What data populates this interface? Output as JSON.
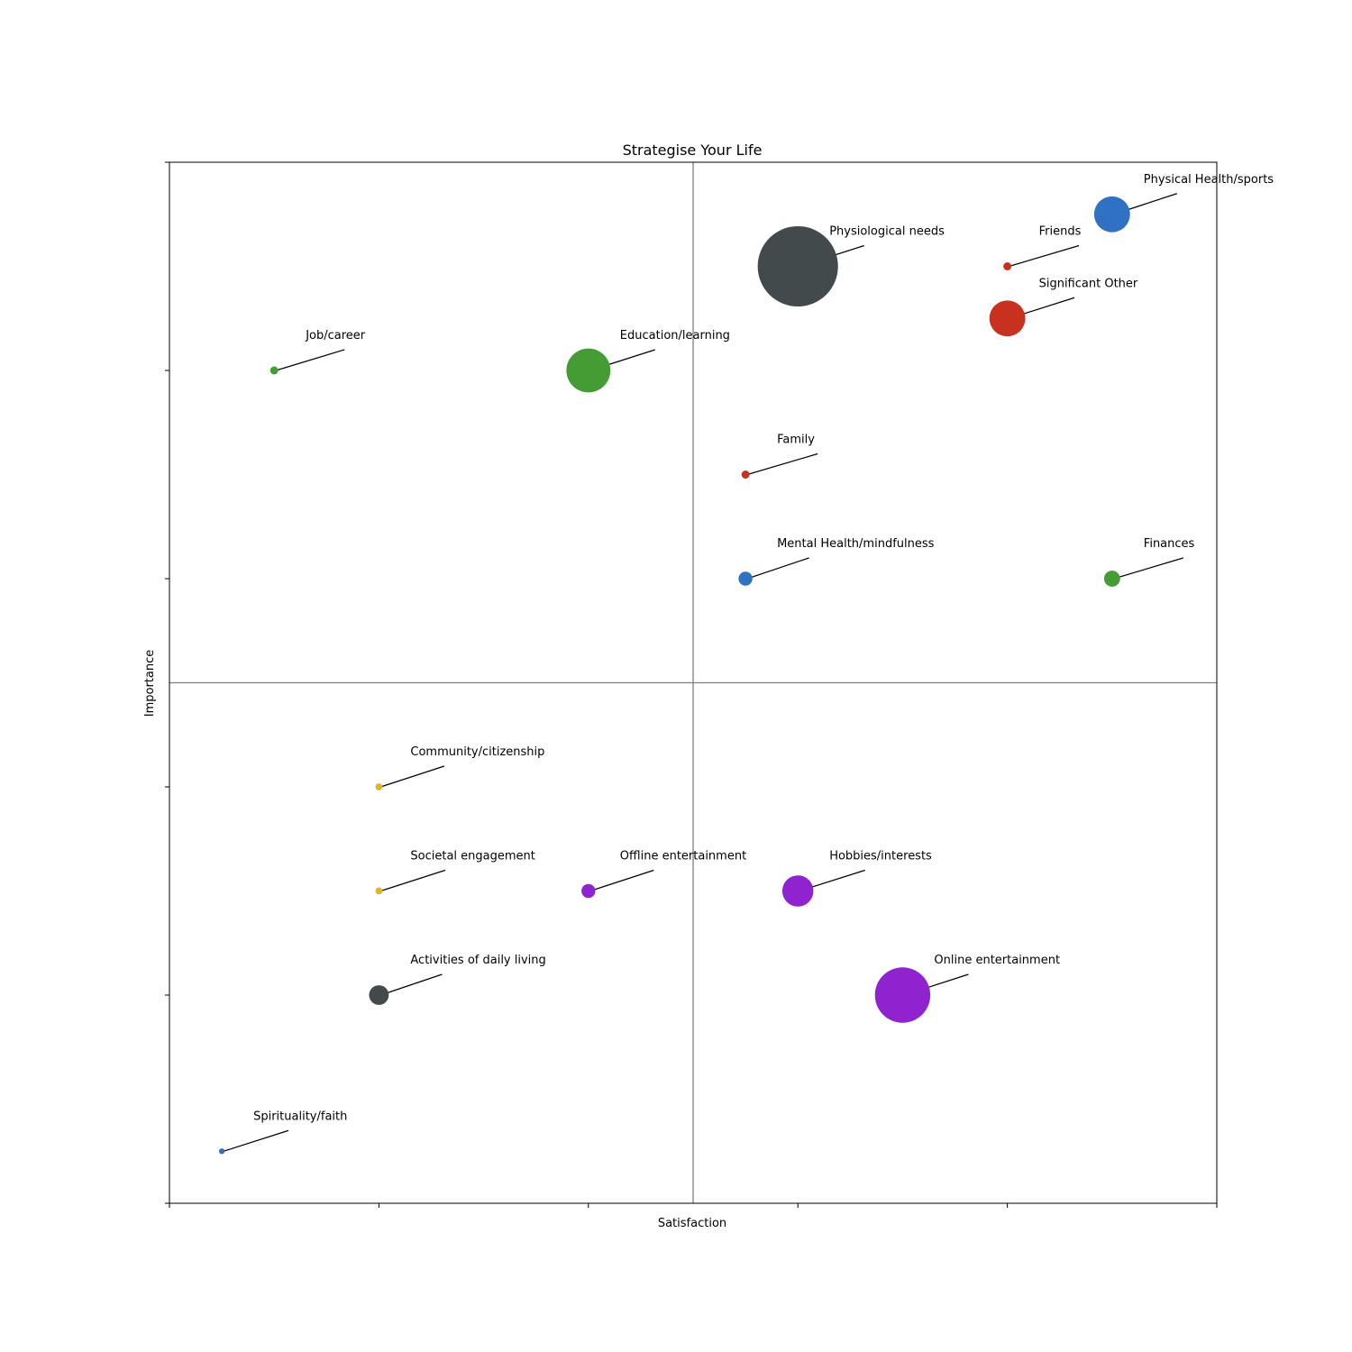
{
  "chart_data": {
    "type": "scatter",
    "title": "Strategise Your Life",
    "xlabel": "Satisfaction",
    "ylabel": "Importance",
    "xlim": [
      0,
      10
    ],
    "ylim": [
      0,
      10
    ],
    "quadrant_lines": {
      "x": 5,
      "y": 5
    },
    "grid": false,
    "tick_labels_visible": false,
    "points": [
      {
        "label": "Physical Health/sports",
        "x": 9.0,
        "y": 9.5,
        "size": 40,
        "color": "#2f72c4"
      },
      {
        "label": "Physiological needs",
        "x": 6.0,
        "y": 9.0,
        "size": 200,
        "color": "#434a4c"
      },
      {
        "label": "Friends",
        "x": 8.0,
        "y": 9.0,
        "size": 2,
        "color": "#c8311d"
      },
      {
        "label": "Significant Other",
        "x": 8.0,
        "y": 8.5,
        "size": 40,
        "color": "#c8311d"
      },
      {
        "label": "Job/career",
        "x": 1.0,
        "y": 8.0,
        "size": 2,
        "color": "#459c34"
      },
      {
        "label": "Education/learning",
        "x": 4.0,
        "y": 8.0,
        "size": 60,
        "color": "#459c34"
      },
      {
        "label": "Family",
        "x": 5.5,
        "y": 7.0,
        "size": 2,
        "color": "#c8311d"
      },
      {
        "label": "Mental Health/mindfulness",
        "x": 5.5,
        "y": 6.0,
        "size": 6,
        "color": "#2f72c4"
      },
      {
        "label": "Finances",
        "x": 9.0,
        "y": 6.0,
        "size": 8,
        "color": "#459c34"
      },
      {
        "label": "Community/citizenship",
        "x": 2.0,
        "y": 4.0,
        "size": 1.5,
        "color": "#e3b51e"
      },
      {
        "label": "Societal engagement",
        "x": 2.0,
        "y": 3.0,
        "size": 1.5,
        "color": "#e3b51e"
      },
      {
        "label": "Offline entertainment",
        "x": 4.0,
        "y": 3.0,
        "size": 6,
        "color": "#8e23cf"
      },
      {
        "label": "Hobbies/interests",
        "x": 6.0,
        "y": 3.0,
        "size": 30,
        "color": "#8e23cf"
      },
      {
        "label": "Activities of daily living",
        "x": 2.0,
        "y": 2.0,
        "size": 12,
        "color": "#434a4c"
      },
      {
        "label": "Online entertainment",
        "x": 7.0,
        "y": 2.0,
        "size": 95,
        "color": "#8e23cf"
      },
      {
        "label": "Spirituality/faith",
        "x": 0.5,
        "y": 0.5,
        "size": 1,
        "color": "#2f72c4"
      }
    ]
  }
}
